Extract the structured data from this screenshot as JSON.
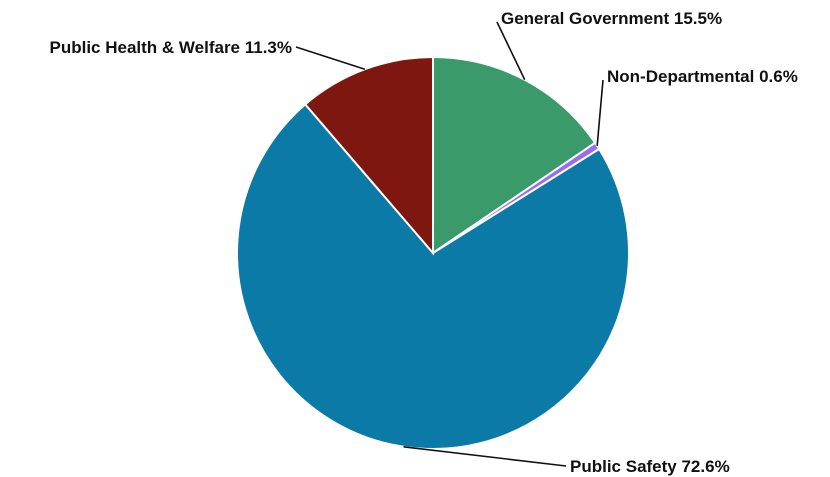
{
  "chart_data": {
    "type": "pie",
    "title": "",
    "slices": [
      {
        "name": "General Government",
        "value": 15.5,
        "label": "General Government 15.5%",
        "color": "#3a9a69"
      },
      {
        "name": "Non-Departmental",
        "value": 0.6,
        "label": "Non-Departmental 0.6%",
        "color": "#9b6cf0"
      },
      {
        "name": "Public Safety",
        "value": 72.6,
        "label": "Public Safety 72.6%",
        "color": "#0b7aa6"
      },
      {
        "name": "Public Health & Welfare",
        "value": 11.3,
        "label": "Public Health & Welfare 11.3%",
        "color": "#7d1710"
      }
    ],
    "start_angle_deg": 0,
    "direction": "clockwise",
    "legend": "none"
  }
}
